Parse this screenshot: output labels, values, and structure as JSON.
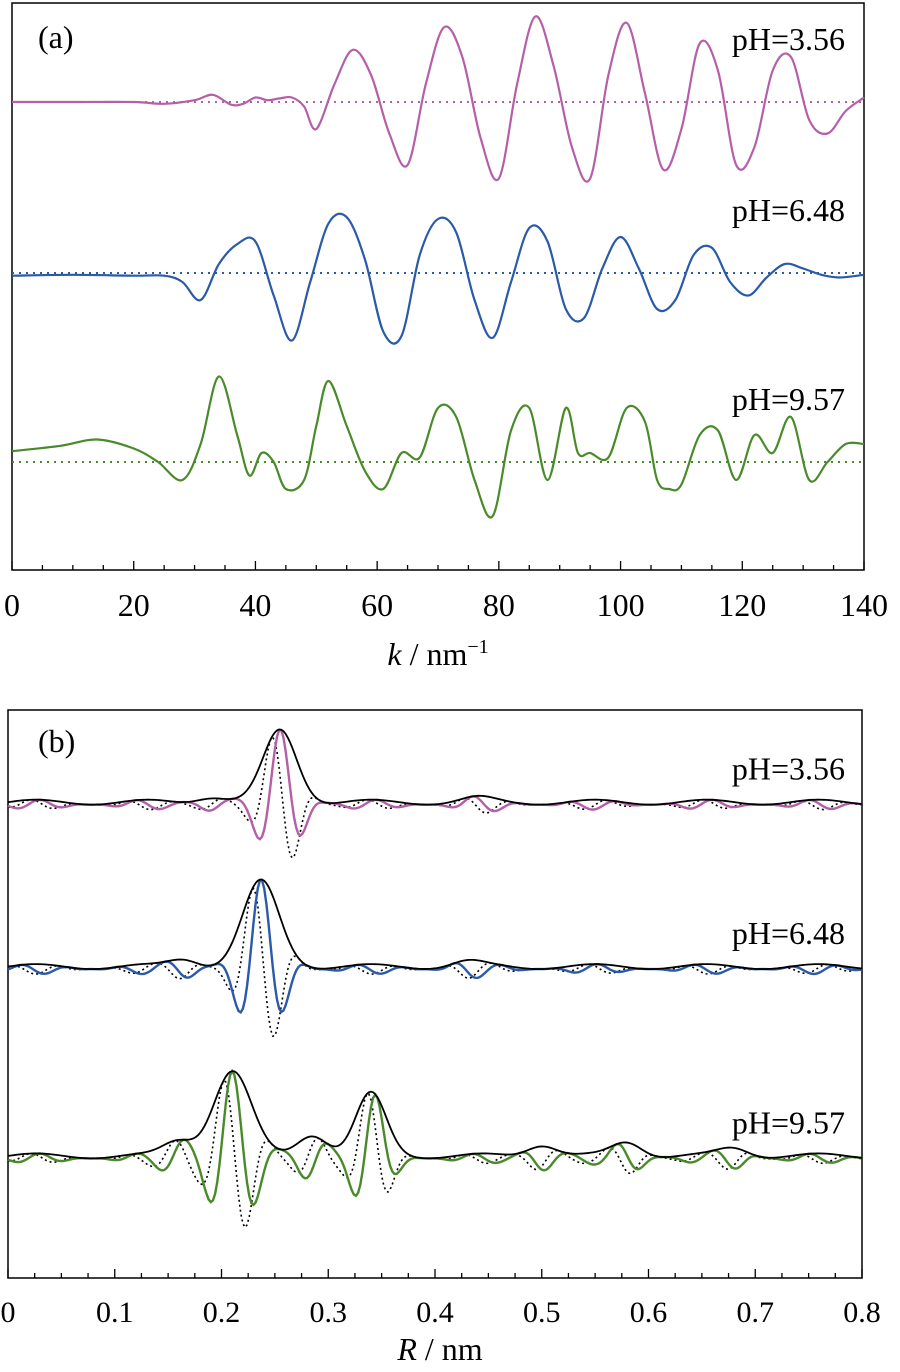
{
  "chart_data": [
    {
      "panel_label": "(a)",
      "type": "line",
      "xlabel_italic": "k",
      "xlabel_rest": " / nm",
      "xlabel_sup": "−1",
      "xlim": [
        0,
        140
      ],
      "x_ticks": [
        "0",
        "20",
        "40",
        "60",
        "80",
        "100",
        "120",
        "140"
      ],
      "x_tick_values": [
        0,
        20,
        40,
        60,
        80,
        100,
        120,
        140
      ],
      "y_ticks_shown": false,
      "grid": false,
      "series": [
        {
          "name": "pH=3.56",
          "color": "#b55fa8",
          "baseline_style": "dotted",
          "offset": 2.2,
          "x": [
            0,
            10,
            20,
            25,
            30,
            33,
            36,
            38,
            40,
            42,
            44,
            46,
            48,
            50,
            53,
            56,
            59,
            62,
            65,
            68,
            71,
            74,
            77,
            80,
            83,
            86,
            89,
            92,
            95,
            98,
            101,
            104,
            107,
            110,
            113,
            116,
            119,
            122,
            125,
            128,
            131,
            134,
            137,
            140
          ],
          "y": [
            0.0,
            0.0,
            0.0,
            -0.02,
            0.02,
            0.08,
            -0.03,
            -0.02,
            0.05,
            0.02,
            0.04,
            0.05,
            -0.05,
            -0.3,
            0.2,
            0.58,
            0.3,
            -0.35,
            -0.7,
            0.2,
            0.83,
            0.5,
            -0.4,
            -0.85,
            0.2,
            0.95,
            0.4,
            -0.5,
            -0.85,
            0.3,
            0.88,
            0.1,
            -0.75,
            -0.3,
            0.65,
            0.35,
            -0.7,
            -0.5,
            0.35,
            0.5,
            -0.2,
            -0.35,
            -0.1,
            0.05
          ]
        },
        {
          "name": "pH=6.48",
          "color": "#2a5aa8",
          "baseline_style": "dotted",
          "offset": 0.3,
          "x": [
            0,
            10,
            20,
            25,
            28,
            31,
            34,
            37,
            40,
            43,
            46,
            49,
            52,
            55,
            58,
            61,
            64,
            67,
            70,
            73,
            76,
            79,
            82,
            85,
            88,
            91,
            94,
            97,
            100,
            103,
            106,
            109,
            112,
            115,
            118,
            121,
            124,
            127,
            130,
            133,
            136,
            140
          ],
          "y": [
            -0.03,
            -0.02,
            -0.03,
            -0.03,
            -0.1,
            -0.3,
            0.1,
            0.32,
            0.35,
            -0.25,
            -0.75,
            -0.1,
            0.55,
            0.62,
            0.15,
            -0.65,
            -0.7,
            0.2,
            0.6,
            0.45,
            -0.3,
            -0.72,
            -0.1,
            0.5,
            0.35,
            -0.4,
            -0.5,
            0.05,
            0.4,
            0.05,
            -0.4,
            -0.3,
            0.2,
            0.28,
            -0.1,
            -0.25,
            -0.05,
            0.1,
            0.05,
            -0.02,
            -0.05,
            -0.02
          ]
        },
        {
          "name": "pH=9.57",
          "color": "#4a8a2a",
          "baseline_style": "dotted",
          "offset": -1.8,
          "x": [
            0,
            8,
            14,
            20,
            24,
            28,
            31,
            34,
            37,
            39,
            41,
            43,
            45,
            48,
            50,
            52,
            55,
            58,
            61,
            64,
            67,
            70,
            73,
            76,
            79,
            82,
            85,
            88,
            91,
            93,
            95,
            98,
            101,
            104,
            106,
            108,
            110,
            113,
            116,
            119,
            122,
            125,
            128,
            131,
            134,
            137,
            140
          ],
          "y": [
            0.12,
            0.18,
            0.25,
            0.15,
            0.0,
            -0.2,
            0.2,
            0.95,
            0.3,
            -0.15,
            0.1,
            0.0,
            -0.3,
            -0.2,
            0.4,
            0.9,
            0.4,
            -0.1,
            -0.3,
            0.1,
            0.05,
            0.6,
            0.5,
            -0.2,
            -0.6,
            0.35,
            0.6,
            -0.2,
            0.6,
            0.1,
            0.1,
            0.05,
            0.6,
            0.45,
            -0.2,
            -0.3,
            -0.25,
            0.3,
            0.35,
            -0.2,
            0.3,
            0.1,
            0.5,
            -0.2,
            0.0,
            0.2,
            0.2
          ]
        }
      ]
    },
    {
      "panel_label": "(b)",
      "type": "line",
      "xlabel_italic": "R",
      "xlabel_rest": " / nm",
      "xlim": [
        0,
        0.8
      ],
      "x_ticks": [
        "0",
        "0.1",
        "0.2",
        "0.3",
        "0.4",
        "0.5",
        "0.6",
        "0.7",
        "0.8"
      ],
      "x_tick_values": [
        0,
        0.1,
        0.2,
        0.3,
        0.4,
        0.5,
        0.6,
        0.7,
        0.8
      ],
      "y_ticks_shown": false,
      "grid": false,
      "groups": [
        {
          "name": "pH=3.56",
          "color": "#b55fa8",
          "offset": 2.55,
          "peak_center": 0.255,
          "peak_amp": 0.72,
          "peak_width": 0.022,
          "side_peaks": [
            [
              0.19,
              0.06
            ],
            [
              0.44,
              0.04
            ]
          ]
        },
        {
          "name": "pH=6.48",
          "color": "#2a5aa8",
          "offset": 0.9,
          "peak_center": 0.237,
          "peak_amp": 0.85,
          "peak_width": 0.024,
          "side_peaks": [
            [
              0.165,
              0.08
            ],
            [
              0.43,
              0.05
            ]
          ]
        },
        {
          "name": "pH=9.57",
          "color": "#4a8a2a",
          "offset": -1.0,
          "peak_center": 0.21,
          "peak_amp": 0.85,
          "peak_width": 0.025,
          "side_peaks": [
            [
              0.34,
              0.62
            ],
            [
              0.285,
              0.22
            ],
            [
              0.16,
              0.15
            ],
            [
              0.5,
              0.12
            ],
            [
              0.58,
              0.14
            ],
            [
              0.68,
              0.08
            ]
          ]
        }
      ],
      "magnitude_color": "#000000",
      "imag_style": "dotted"
    }
  ]
}
